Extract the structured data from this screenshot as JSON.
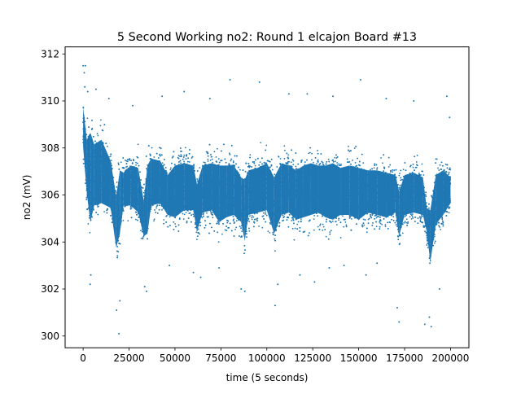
{
  "chart_data": {
    "type": "scatter",
    "title": "5 Second Working no2: Round 1 elcajon Board #13",
    "xlabel": "time (5 seconds)",
    "ylabel": "no2 (mV)",
    "xlim": [
      -9800,
      210000
    ],
    "ylim": [
      299.5,
      312.3
    ],
    "x_ticks": [
      0,
      25000,
      50000,
      75000,
      100000,
      125000,
      150000,
      175000,
      200000
    ],
    "x_tick_labels": [
      "0",
      "25000",
      "50000",
      "75000",
      "100000",
      "125000",
      "150000",
      "175000",
      "200000"
    ],
    "y_ticks": [
      300,
      302,
      304,
      306,
      308,
      310,
      312
    ],
    "y_tick_labels": [
      "300",
      "302",
      "304",
      "306",
      "308",
      "310",
      "312"
    ],
    "grid": false,
    "legend": null,
    "series_color": "#1f77b4",
    "x_range": [
      0,
      200000
    ],
    "dense_band": {
      "x_bins": [
        0,
        2000,
        4000,
        6000,
        10000,
        15000,
        18000,
        20000,
        22000,
        26000,
        30000,
        33000,
        35000,
        37000,
        42000,
        46000,
        50000,
        55000,
        60000,
        62000,
        65000,
        70000,
        74000,
        78000,
        82000,
        86000,
        88000,
        90000,
        95000,
        100000,
        104000,
        108000,
        112000,
        116000,
        120000,
        124000,
        128000,
        132000,
        136000,
        140000,
        145000,
        150000,
        155000,
        160000,
        165000,
        170000,
        172000,
        175000,
        180000,
        185000,
        187000,
        189000,
        192000,
        196000,
        200000
      ],
      "lower": [
        307.5,
        305.5,
        304.3,
        305.0,
        305.1,
        304.9,
        303.2,
        303.8,
        305.0,
        305.0,
        304.7,
        303.7,
        303.8,
        305.0,
        305.1,
        304.6,
        304.5,
        304.8,
        304.8,
        303.9,
        304.7,
        304.8,
        304.3,
        304.5,
        304.6,
        304.3,
        303.5,
        304.6,
        304.7,
        304.8,
        303.8,
        304.6,
        304.7,
        304.4,
        304.5,
        304.6,
        304.7,
        304.5,
        304.4,
        304.6,
        304.6,
        304.4,
        304.7,
        304.6,
        304.5,
        304.7,
        303.7,
        304.6,
        304.7,
        304.6,
        303.9,
        302.6,
        304.2,
        304.6,
        305.1
      ],
      "upper": [
        310.3,
        308.9,
        309.2,
        308.7,
        308.9,
        308.0,
        306.5,
        307.6,
        307.5,
        307.8,
        307.7,
        306.3,
        307.8,
        308.1,
        308.0,
        307.4,
        307.8,
        307.9,
        307.8,
        307.0,
        307.8,
        307.9,
        307.8,
        307.8,
        307.8,
        307.3,
        307.2,
        307.6,
        307.7,
        307.9,
        307.3,
        307.9,
        307.8,
        307.6,
        307.8,
        307.9,
        307.8,
        307.8,
        307.9,
        307.7,
        307.8,
        307.7,
        307.6,
        307.6,
        307.5,
        307.4,
        306.7,
        307.4,
        307.5,
        307.3,
        306.0,
        305.9,
        307.4,
        307.6,
        307.3
      ]
    },
    "outliers": [
      {
        "x": 0,
        "y": 311.5
      },
      {
        "x": 600,
        "y": 311.2
      },
      {
        "x": 1200,
        "y": 311.5
      },
      {
        "x": 900,
        "y": 310.6
      },
      {
        "x": 2500,
        "y": 310.4
      },
      {
        "x": 7000,
        "y": 310.5
      },
      {
        "x": 3800,
        "y": 302.2
      },
      {
        "x": 4200,
        "y": 302.6
      },
      {
        "x": 14000,
        "y": 310.1
      },
      {
        "x": 18200,
        "y": 301.1
      },
      {
        "x": 19500,
        "y": 300.1
      },
      {
        "x": 20000,
        "y": 301.5
      },
      {
        "x": 27000,
        "y": 309.8
      },
      {
        "x": 33500,
        "y": 302.1
      },
      {
        "x": 34500,
        "y": 301.9
      },
      {
        "x": 43000,
        "y": 310.2
      },
      {
        "x": 47000,
        "y": 303.0
      },
      {
        "x": 55000,
        "y": 310.4
      },
      {
        "x": 60000,
        "y": 302.7
      },
      {
        "x": 64000,
        "y": 302.5
      },
      {
        "x": 69000,
        "y": 310.1
      },
      {
        "x": 74000,
        "y": 302.9
      },
      {
        "x": 80000,
        "y": 310.9
      },
      {
        "x": 86000,
        "y": 302.0
      },
      {
        "x": 88000,
        "y": 301.9
      },
      {
        "x": 96000,
        "y": 310.8
      },
      {
        "x": 104500,
        "y": 301.3
      },
      {
        "x": 106000,
        "y": 302.2
      },
      {
        "x": 112000,
        "y": 310.3
      },
      {
        "x": 118000,
        "y": 302.6
      },
      {
        "x": 122000,
        "y": 310.3
      },
      {
        "x": 126000,
        "y": 302.3
      },
      {
        "x": 134000,
        "y": 302.9
      },
      {
        "x": 136000,
        "y": 310.2
      },
      {
        "x": 142000,
        "y": 303.0
      },
      {
        "x": 151000,
        "y": 310.9
      },
      {
        "x": 154000,
        "y": 302.6
      },
      {
        "x": 160000,
        "y": 303.1
      },
      {
        "x": 165000,
        "y": 310.1
      },
      {
        "x": 171000,
        "y": 301.2
      },
      {
        "x": 172000,
        "y": 300.6
      },
      {
        "x": 180000,
        "y": 310.0
      },
      {
        "x": 186000,
        "y": 300.5
      },
      {
        "x": 188500,
        "y": 300.8
      },
      {
        "x": 189500,
        "y": 300.4
      },
      {
        "x": 194000,
        "y": 302.0
      },
      {
        "x": 198000,
        "y": 310.2
      },
      {
        "x": 199500,
        "y": 309.3
      }
    ]
  }
}
